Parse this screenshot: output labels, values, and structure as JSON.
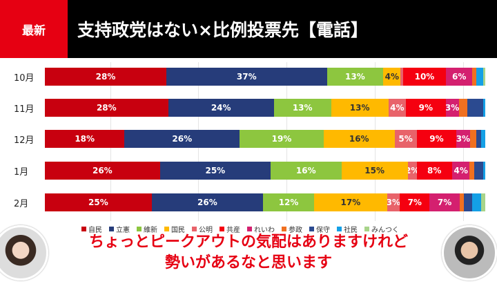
{
  "header": {
    "badge": "最新",
    "title": "支持政党はない×比例投票先【電話】"
  },
  "parties": [
    {
      "name": "自民",
      "color": "#c8000f"
    },
    {
      "name": "立憲",
      "color": "#263c7a"
    },
    {
      "name": "維新",
      "color": "#8dc63f"
    },
    {
      "name": "国民",
      "color": "#ffb900"
    },
    {
      "name": "公明",
      "color": "#e8636a"
    },
    {
      "name": "共産",
      "color": "#f50010"
    },
    {
      "name": "れいわ",
      "color": "#d4206f"
    },
    {
      "name": "参政",
      "color": "#f07020"
    },
    {
      "name": "保守",
      "color": "#2b4a90"
    },
    {
      "name": "社民",
      "color": "#14a0e6"
    },
    {
      "name": "みんつく",
      "color": "#a8d48a"
    }
  ],
  "chart_data": {
    "type": "bar",
    "orientation": "horizontal-stacked",
    "categories": [
      "10月",
      "11月",
      "12月",
      "1月",
      "2月"
    ],
    "series": [
      {
        "name": "自民",
        "values": [
          28,
          28,
          18,
          26,
          25
        ]
      },
      {
        "name": "立憲",
        "values": [
          37,
          24,
          26,
          25,
          26
        ]
      },
      {
        "name": "維新",
        "values": [
          13,
          13,
          19,
          16,
          12
        ]
      },
      {
        "name": "国民",
        "values": [
          4,
          13,
          16,
          15,
          17
        ]
      },
      {
        "name": "公明",
        "values": [
          0.5,
          4,
          5,
          2,
          3
        ]
      },
      {
        "name": "共産",
        "values": [
          10,
          9,
          9,
          8,
          7
        ]
      },
      {
        "name": "れいわ",
        "values": [
          6,
          3,
          3,
          4,
          7
        ]
      },
      {
        "name": "参政",
        "values": [
          1,
          2,
          1.5,
          1,
          1
        ]
      },
      {
        "name": "保守",
        "values": [
          0,
          3.5,
          1,
          2,
          2
        ]
      },
      {
        "name": "社民",
        "values": [
          1.5,
          0.5,
          1,
          0.5,
          2
        ]
      },
      {
        "name": "みんつく",
        "values": [
          0.5,
          0,
          0,
          0,
          1
        ]
      }
    ],
    "labels": [
      [
        "28%",
        "37%",
        "13%",
        "4%",
        "",
        "10%",
        "6%",
        "",
        "",
        "",
        ""
      ],
      [
        "28%",
        "24%",
        "13%",
        "13%",
        "4%",
        "9%",
        "3%",
        "",
        "",
        "",
        ""
      ],
      [
        "18%",
        "26%",
        "19%",
        "16%",
        "5%",
        "9%",
        "3%",
        "",
        "",
        "",
        ""
      ],
      [
        "26%",
        "25%",
        "16%",
        "15%",
        "2%",
        "8%",
        "4%",
        "",
        "",
        "",
        ""
      ],
      [
        "25%",
        "26%",
        "12%",
        "17%",
        "3%",
        "7%",
        "7%",
        "",
        "",
        "",
        ""
      ]
    ]
  },
  "subtitle": {
    "line1": "ちょっとピークアウトの気配はありますけれど",
    "line2": "勢いがあるなと思います"
  }
}
